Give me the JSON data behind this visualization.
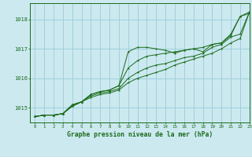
{
  "title": "Graphe pression niveau de la mer (hPa)",
  "xlim": [
    -0.5,
    23
  ],
  "ylim": [
    1014.5,
    1018.55
  ],
  "yticks": [
    1015,
    1016,
    1017,
    1018
  ],
  "xticks": [
    0,
    1,
    2,
    3,
    4,
    5,
    6,
    7,
    8,
    9,
    10,
    11,
    12,
    13,
    14,
    15,
    16,
    17,
    18,
    19,
    20,
    21,
    22,
    23
  ],
  "bg_color": "#cce9f0",
  "grid_color": "#99ccd9",
  "line_color": "#1a6b1a",
  "series1": {
    "x": [
      0,
      1,
      2,
      3,
      4,
      5,
      6,
      7,
      8,
      9,
      10,
      11,
      12,
      13,
      14,
      15,
      16,
      17,
      18,
      19,
      20,
      21,
      22,
      23
    ],
    "y": [
      1014.7,
      1014.75,
      1014.75,
      1014.8,
      1015.05,
      1015.2,
      1015.35,
      1015.45,
      1015.5,
      1015.6,
      1015.85,
      1016.0,
      1016.1,
      1016.2,
      1016.3,
      1016.45,
      1016.55,
      1016.65,
      1016.75,
      1016.85,
      1017.0,
      1017.2,
      1017.35,
      1018.25
    ]
  },
  "series2": {
    "x": [
      0,
      1,
      2,
      3,
      4,
      5,
      6,
      7,
      8,
      9,
      10,
      11,
      12,
      13,
      14,
      15,
      16,
      17,
      18,
      19,
      20,
      21,
      22,
      23
    ],
    "y": [
      1014.7,
      1014.75,
      1014.75,
      1014.8,
      1015.05,
      1015.2,
      1015.4,
      1015.5,
      1015.55,
      1015.65,
      1016.0,
      1016.2,
      1016.35,
      1016.45,
      1016.5,
      1016.6,
      1016.7,
      1016.75,
      1016.85,
      1017.05,
      1017.15,
      1017.4,
      1017.5,
      1018.25
    ]
  },
  "series3": {
    "x": [
      0,
      1,
      2,
      3,
      4,
      5,
      6,
      7,
      8,
      9,
      10,
      11,
      12,
      13,
      14,
      15,
      16,
      17,
      18,
      19,
      20,
      21,
      22,
      23
    ],
    "y": [
      1014.7,
      1014.75,
      1014.75,
      1014.8,
      1015.1,
      1015.2,
      1015.45,
      1015.55,
      1015.6,
      1015.75,
      1016.35,
      1016.6,
      1016.75,
      1016.8,
      1016.85,
      1016.9,
      1016.95,
      1017.0,
      1017.05,
      1017.15,
      1017.2,
      1017.5,
      1018.1,
      1018.25
    ]
  },
  "series4": {
    "x": [
      0,
      1,
      2,
      3,
      4,
      5,
      6,
      7,
      8,
      9,
      10,
      11,
      12,
      13,
      14,
      15,
      16,
      17,
      18,
      19,
      20,
      21,
      22,
      23
    ],
    "y": [
      1014.7,
      1014.75,
      1014.75,
      1014.8,
      1015.1,
      1015.2,
      1015.45,
      1015.55,
      1015.6,
      1015.75,
      1016.9,
      1017.05,
      1017.05,
      1017.0,
      1016.95,
      1016.85,
      1016.95,
      1017.0,
      1016.9,
      1017.15,
      1017.2,
      1017.45,
      1018.1,
      1018.2
    ]
  }
}
